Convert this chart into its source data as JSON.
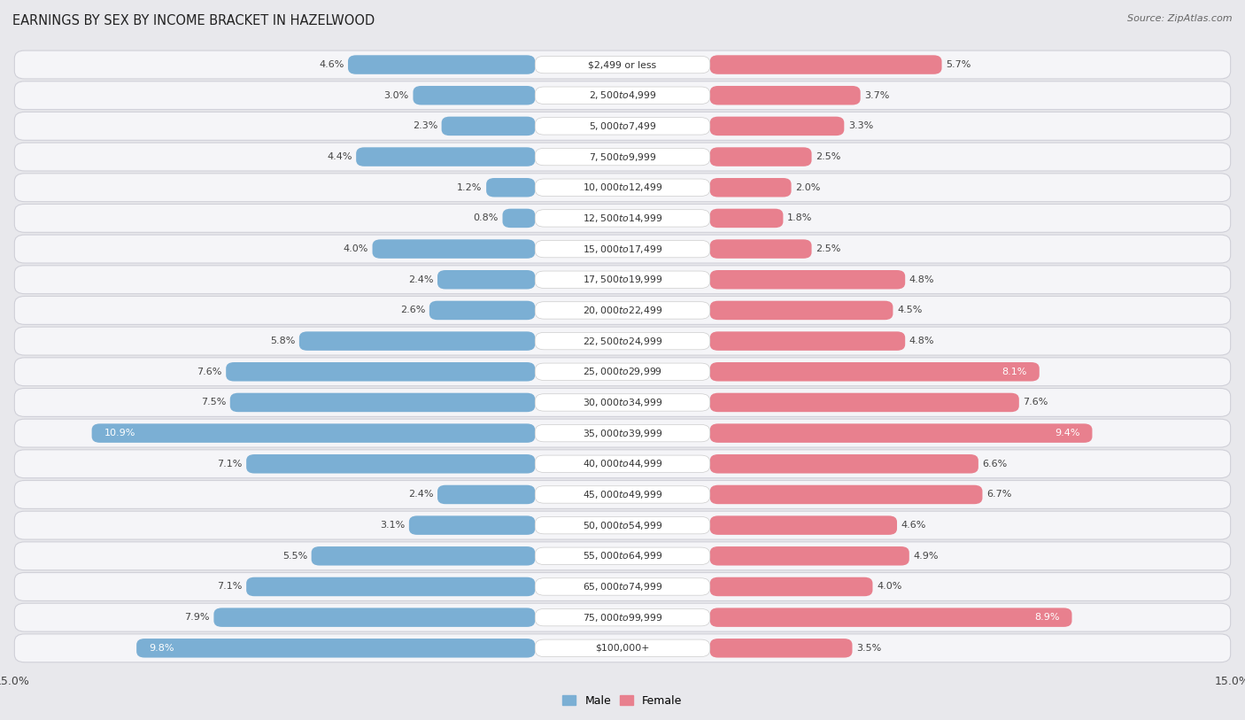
{
  "title": "EARNINGS BY SEX BY INCOME BRACKET IN HAZELWOOD",
  "source": "Source: ZipAtlas.com",
  "categories": [
    "$2,499 or less",
    "$2,500 to $4,999",
    "$5,000 to $7,499",
    "$7,500 to $9,999",
    "$10,000 to $12,499",
    "$12,500 to $14,999",
    "$15,000 to $17,499",
    "$17,500 to $19,999",
    "$20,000 to $22,499",
    "$22,500 to $24,999",
    "$25,000 to $29,999",
    "$30,000 to $34,999",
    "$35,000 to $39,999",
    "$40,000 to $44,999",
    "$45,000 to $49,999",
    "$50,000 to $54,999",
    "$55,000 to $64,999",
    "$65,000 to $74,999",
    "$75,000 to $99,999",
    "$100,000+"
  ],
  "male_values": [
    4.6,
    3.0,
    2.3,
    4.4,
    1.2,
    0.8,
    4.0,
    2.4,
    2.6,
    5.8,
    7.6,
    7.5,
    10.9,
    7.1,
    2.4,
    3.1,
    5.5,
    7.1,
    7.9,
    9.8
  ],
  "female_values": [
    5.7,
    3.7,
    3.3,
    2.5,
    2.0,
    1.8,
    2.5,
    4.8,
    4.5,
    4.8,
    8.1,
    7.6,
    9.4,
    6.6,
    6.7,
    4.6,
    4.9,
    4.0,
    8.9,
    3.5
  ],
  "male_color": "#7bafd4",
  "female_color": "#e8808e",
  "male_color_light": "#a8c8e8",
  "female_color_light": "#f0a0b0",
  "male_label": "Male",
  "female_label": "Female",
  "xlim": 15.0,
  "bg_color": "#e8e8ec",
  "row_color": "#f5f5f8",
  "row_border_color": "#d0d0d8",
  "center_label_color": "#ffffff",
  "title_fontsize": 10.5,
  "label_fontsize": 8.0,
  "cat_fontsize": 7.8,
  "tick_fontsize": 9,
  "source_fontsize": 8,
  "white_text_threshold": 8.0
}
